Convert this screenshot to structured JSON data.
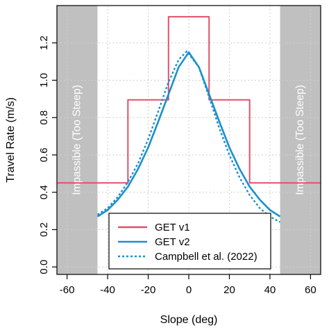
{
  "chart_data": {
    "type": "line",
    "xlabel": "Slope (deg)",
    "ylabel": "Travel Rate (m/s)",
    "xlim": [
      -65,
      65
    ],
    "ylim": [
      -0.04,
      1.4
    ],
    "x_ticks": [
      -60,
      -40,
      -20,
      0,
      20,
      40,
      60
    ],
    "x_tick_labels": [
      "-60",
      "-40",
      "-20",
      "0",
      "20",
      "40",
      "60"
    ],
    "y_ticks": [
      0.0,
      0.2,
      0.4,
      0.6,
      0.8,
      1.0,
      1.2
    ],
    "y_tick_labels": [
      "0.0",
      "0.2",
      "0.4",
      "0.6",
      "0.8",
      "1.0",
      "1.2"
    ],
    "grid": true,
    "legend_position": "bottom-center",
    "impassable_regions": [
      {
        "x_range": [
          -65,
          -45
        ],
        "label": "Impassible (Too Steep)"
      },
      {
        "x_range": [
          45,
          65
        ],
        "label": "Impassible (Too Steep)"
      }
    ],
    "series": [
      {
        "name": "GET v1",
        "style": "step",
        "color": "#e0506a",
        "points": [
          [
            -65,
            0.45
          ],
          [
            -30,
            0.45
          ],
          [
            -30,
            0.895
          ],
          [
            -10,
            0.895
          ],
          [
            -10,
            1.34
          ],
          [
            10,
            1.34
          ],
          [
            10,
            0.895
          ],
          [
            30,
            0.895
          ],
          [
            30,
            0.45
          ],
          [
            65,
            0.45
          ]
        ]
      },
      {
        "name": "GET v2",
        "style": "solid",
        "color": "#1a90cc",
        "peak_x": 0,
        "peak_y": 1.15,
        "points": [
          [
            -45,
            0.27
          ],
          [
            -40,
            0.305
          ],
          [
            -35,
            0.36
          ],
          [
            -30,
            0.43
          ],
          [
            -25,
            0.525
          ],
          [
            -20,
            0.64
          ],
          [
            -15,
            0.78
          ],
          [
            -10,
            0.925
          ],
          [
            -5,
            1.07
          ],
          [
            0,
            1.15
          ],
          [
            5,
            1.07
          ],
          [
            10,
            0.925
          ],
          [
            15,
            0.78
          ],
          [
            20,
            0.64
          ],
          [
            25,
            0.525
          ],
          [
            30,
            0.43
          ],
          [
            35,
            0.36
          ],
          [
            40,
            0.305
          ],
          [
            45,
            0.27
          ]
        ]
      },
      {
        "name": "Campbell et al. (2022)",
        "style": "dotted",
        "color": "#1a90cc",
        "peak_x": -1,
        "peak_y": 1.155,
        "points": [
          [
            -45,
            0.28
          ],
          [
            -40,
            0.315
          ],
          [
            -35,
            0.375
          ],
          [
            -30,
            0.455
          ],
          [
            -25,
            0.555
          ],
          [
            -20,
            0.685
          ],
          [
            -15,
            0.835
          ],
          [
            -10,
            0.99
          ],
          [
            -5,
            1.11
          ],
          [
            -1,
            1.155
          ],
          [
            5,
            1.07
          ],
          [
            10,
            0.91
          ],
          [
            15,
            0.745
          ],
          [
            20,
            0.6
          ],
          [
            25,
            0.48
          ],
          [
            30,
            0.385
          ],
          [
            35,
            0.315
          ],
          [
            40,
            0.27
          ],
          [
            45,
            0.24
          ]
        ]
      }
    ]
  }
}
